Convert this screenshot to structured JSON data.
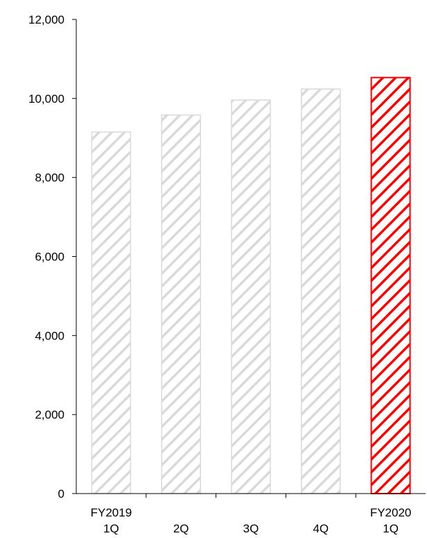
{
  "chart_data": {
    "type": "bar",
    "categories": [
      {
        "line1": "FY2019",
        "line2": "1Q"
      },
      {
        "line1": "",
        "line2": "2Q"
      },
      {
        "line1": "",
        "line2": "3Q"
      },
      {
        "line1": "",
        "line2": "4Q"
      },
      {
        "line1": "FY2020",
        "line2": "1Q"
      }
    ],
    "values": [
      9150,
      9580,
      9960,
      10240,
      10530
    ],
    "highlight_index": 4,
    "ylim": [
      0,
      12000
    ],
    "yticks": [
      0,
      2000,
      4000,
      6000,
      8000,
      10000,
      12000
    ],
    "ytick_labels": [
      "0",
      "2,000",
      "4,000",
      "6,000",
      "8,000",
      "10,000",
      "12,000"
    ],
    "grid": false,
    "legend": "none",
    "colors": {
      "normal_stroke": "#d9d9d9",
      "normal_hatch": "#d9d9d9",
      "highlight_stroke": "#ff0000",
      "highlight_hatch": "#ff0000",
      "axis": "#000000"
    }
  }
}
